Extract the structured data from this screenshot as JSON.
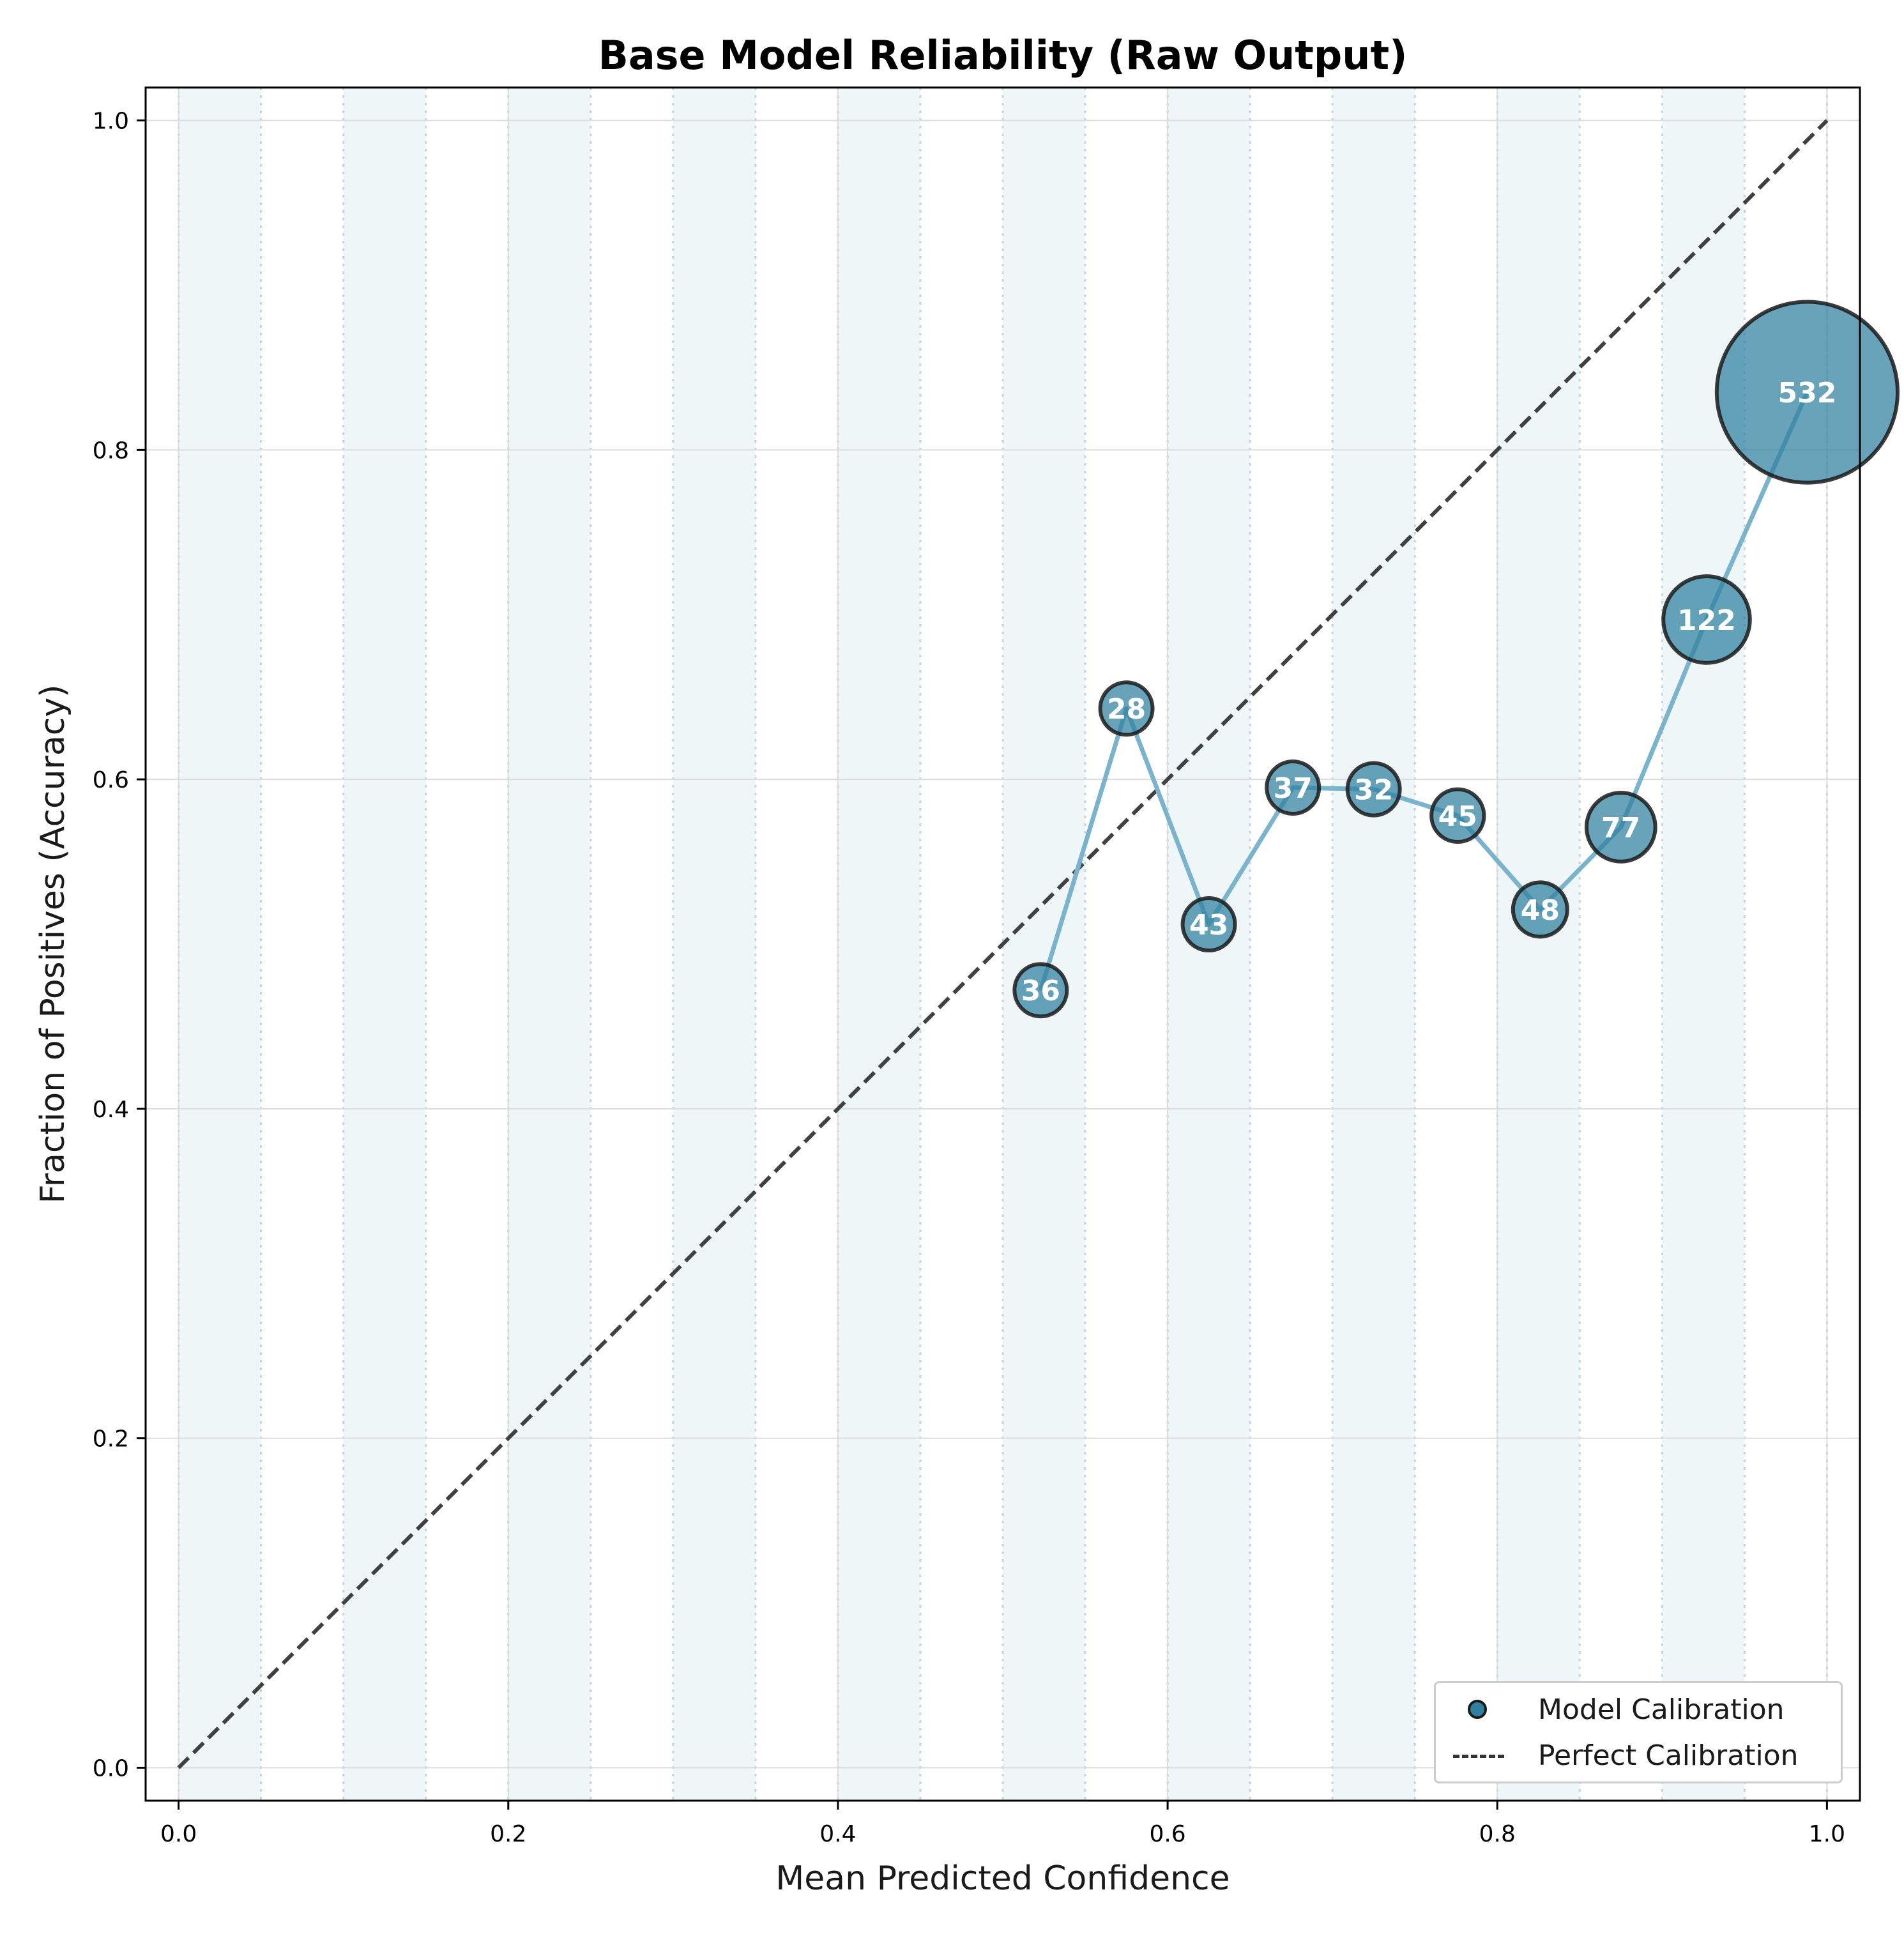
{
  "chart_data": {
    "type": "scatter",
    "title": "Base Model Reliability (Raw Output)",
    "xlabel": "Mean Predicted Confidence",
    "ylabel": "Fraction of Positives (Accuracy)",
    "xlim": [
      -0.02,
      1.02
    ],
    "ylim": [
      -0.02,
      1.02
    ],
    "xticks": [
      "0.0",
      "0.2",
      "0.4",
      "0.6",
      "0.8",
      "1.0"
    ],
    "yticks": [
      "0.0",
      "0.2",
      "0.4",
      "0.6",
      "0.8",
      "1.0"
    ],
    "grid": true,
    "legend_position": "bottom-right",
    "bins": {
      "count": 20,
      "width": 0.05,
      "shaded": "alternate"
    },
    "series": [
      {
        "name": "Model Calibration",
        "kind": "line+markers",
        "color": "#2e7fa0",
        "line_color": "#7ab3cc",
        "x": [
          0.523,
          0.575,
          0.625,
          0.676,
          0.725,
          0.776,
          0.826,
          0.875,
          0.927,
          0.988
        ],
        "y": [
          0.472,
          0.643,
          0.512,
          0.595,
          0.594,
          0.578,
          0.521,
          0.571,
          0.697,
          0.835
        ],
        "counts": [
          "36",
          "28",
          "43",
          "37",
          "32",
          "45",
          "48",
          "77",
          "122",
          "532"
        ]
      },
      {
        "name": "Perfect Calibration",
        "kind": "dashed-line",
        "color": "#404040",
        "x": [
          0,
          1
        ],
        "y": [
          0,
          1
        ]
      }
    ]
  },
  "legend": {
    "items": [
      {
        "label": "Model Calibration"
      },
      {
        "label": "Perfect Calibration"
      }
    ]
  },
  "colors": {
    "band": "#eef6f7",
    "marker_fill": "#2e7fa0",
    "marker_edge": "#1a1a1a",
    "diagonal": "#404040",
    "grid": "#dcdcdc"
  }
}
